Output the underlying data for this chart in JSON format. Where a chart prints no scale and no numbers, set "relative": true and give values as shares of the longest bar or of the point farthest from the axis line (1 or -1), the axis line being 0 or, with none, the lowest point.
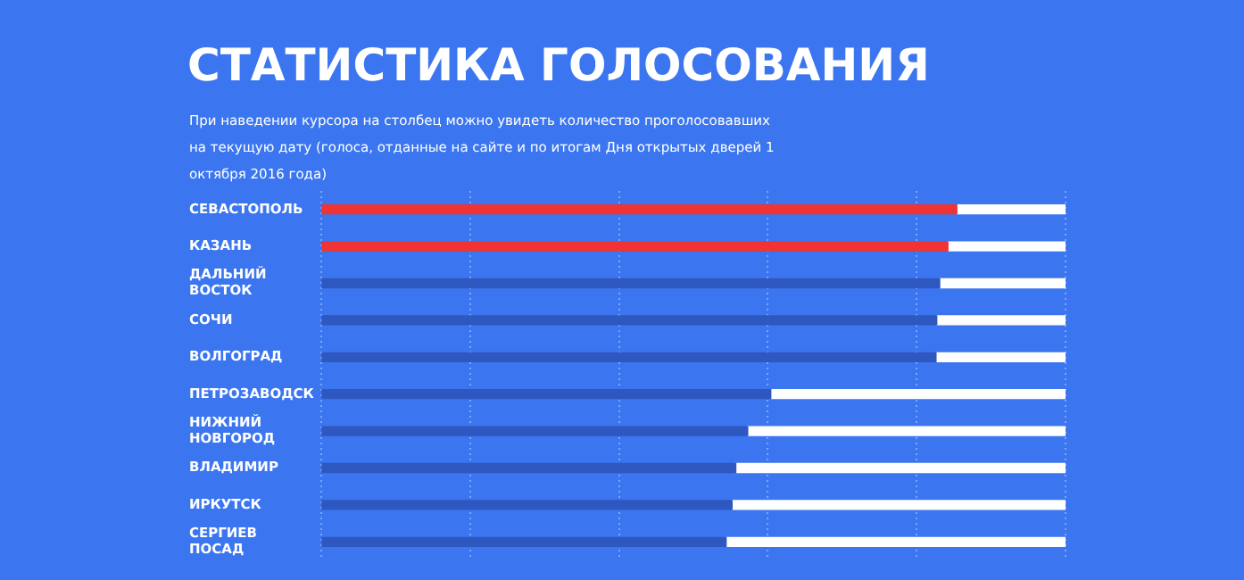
{
  "chart_data": {
    "type": "bar",
    "orientation": "horizontal",
    "stacked": true,
    "relative": true,
    "grid": "x",
    "legend": false,
    "title": "СТАТИСТИКА ГОЛОСОВАНИЯ",
    "subtitle": "При наведении курсора на столбец можно увидеть количество проголосовавших на текущую дату (голоса, отданные на сайте и по итогам Дня открытых дверей 1 октября 2016 года)",
    "categories": [
      "СЕВАСТОПОЛЬ",
      "КАЗАНЬ",
      "ДАЛЬНИЙ ВОСТОК",
      "СОЧИ",
      "ВОЛГОГРАД",
      "ПЕТРОЗАВОДСК",
      "НИЖНИЙ НОВГОРОД",
      "ВЛАДИМИР",
      "ИРКУТСК",
      "СЕРГИЕВ ПОСАД"
    ],
    "series": [
      {
        "colors": [
          "#f03333",
          "#f03333",
          "#2f57c0",
          "#2f57c0",
          "#2f57c0",
          "#2f57c0",
          "#2f57c0",
          "#2f57c0",
          "#2f57c0",
          "#2f57c0"
        ],
        "values": [
          0.854,
          0.842,
          0.831,
          0.827,
          0.826,
          0.604,
          0.573,
          0.557,
          0.552,
          0.544
        ]
      },
      {
        "color": "#ffffff",
        "values": [
          0.146,
          0.158,
          0.169,
          0.173,
          0.174,
          0.396,
          0.427,
          0.443,
          0.448,
          0.456
        ]
      }
    ]
  }
}
